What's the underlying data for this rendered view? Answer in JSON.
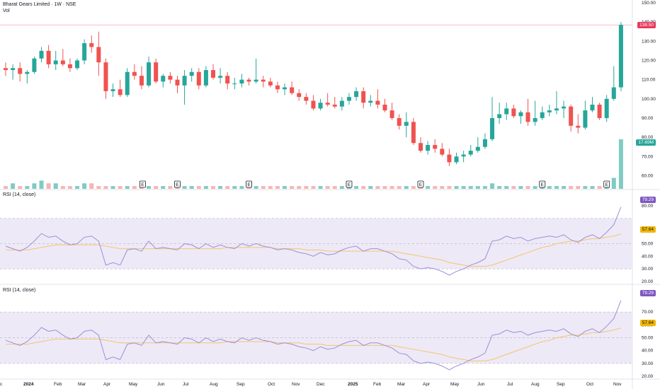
{
  "header": {
    "title": "Bharat Gears Limited · 1W · NSE",
    "vol_label": "Vol"
  },
  "colors": {
    "up": "#26a69a",
    "down": "#ef5350",
    "up_vol": "#80cbc4",
    "down_vol": "#f7b4b3",
    "rsi_line": "#9c8fd6",
    "rsi_ma": "#f5c56b",
    "rsi_band": "#ede9f7",
    "last_price_tag": "#e8395b",
    "vol_tag": "#26a69a",
    "rsi_tag": "#7e57c2",
    "ma_tag": "#f2b705"
  },
  "chart_data": [
    {
      "type": "candlestick",
      "title": "Bharat Gears Limited · 1W · NSE",
      "ylim": [
        55,
        150
      ],
      "y_ticks": [
        "150.00",
        "140.00",
        "130.00",
        "120.00",
        "110.00",
        "100.00",
        "90.00",
        "80.00",
        "70.00",
        "60.00"
      ],
      "last_price_label": "138.50",
      "last_volume_label": "17.69M",
      "earnings_markers": [
        "E",
        "E",
        "E",
        "E",
        "E",
        "E",
        "E",
        "E"
      ],
      "x_labels": [
        "c",
        "2024",
        "Feb",
        "Mar",
        "Apr",
        "May",
        "Jun",
        "Jul",
        "Aug",
        "Sep",
        "Oct",
        "Nov",
        "Dec",
        "2025",
        "Feb",
        "Mar",
        "Apr",
        "May",
        "Jun",
        "Jul",
        "Aug",
        "Sep",
        "Oct",
        "Nov"
      ],
      "ohlc": [
        [
          116,
          119,
          112,
          115
        ],
        [
          115,
          118,
          110,
          116
        ],
        [
          116,
          119,
          109,
          113
        ],
        [
          113,
          115,
          108,
          114
        ],
        [
          114,
          122,
          113,
          121
        ],
        [
          121,
          127,
          119,
          125
        ],
        [
          125,
          128,
          116,
          118
        ],
        [
          118,
          125,
          115,
          120
        ],
        [
          120,
          126,
          117,
          118
        ],
        [
          118,
          121,
          114,
          116
        ],
        [
          116,
          121,
          115,
          120
        ],
        [
          120,
          131,
          118,
          129
        ],
        [
          129,
          133,
          124,
          127
        ],
        [
          127,
          135,
          112,
          119
        ],
        [
          119,
          121,
          100,
          104
        ],
        [
          104,
          108,
          101,
          105
        ],
        [
          105,
          110,
          101,
          102
        ],
        [
          102,
          116,
          101,
          114
        ],
        [
          114,
          118,
          110,
          112
        ],
        [
          112,
          117,
          105,
          107
        ],
        [
          107,
          122,
          106,
          119
        ],
        [
          119,
          121,
          108,
          109
        ],
        [
          109,
          113,
          106,
          112
        ],
        [
          112,
          114,
          108,
          110
        ],
        [
          110,
          112,
          103,
          107
        ],
        [
          107,
          115,
          97,
          112
        ],
        [
          112,
          116,
          109,
          114
        ],
        [
          114,
          116,
          105,
          107
        ],
        [
          107,
          117,
          106,
          115
        ],
        [
          115,
          118,
          110,
          111
        ],
        [
          111,
          116,
          108,
          112
        ],
        [
          112,
          114,
          105,
          108
        ],
        [
          108,
          111,
          105,
          108
        ],
        [
          108,
          113,
          106,
          110
        ],
        [
          110,
          111,
          107,
          109
        ],
        [
          109,
          121,
          108,
          110
        ],
        [
          110,
          112,
          106,
          109
        ],
        [
          109,
          111,
          106,
          107
        ],
        [
          107,
          109,
          103,
          105
        ],
        [
          105,
          108,
          102,
          106
        ],
        [
          106,
          109,
          102,
          103
        ],
        [
          103,
          105,
          99,
          101
        ],
        [
          101,
          103,
          97,
          99
        ],
        [
          99,
          102,
          94,
          95
        ],
        [
          95,
          100,
          94,
          98
        ],
        [
          98,
          103,
          96,
          97
        ],
        [
          97,
          101,
          95,
          96
        ],
        [
          96,
          101,
          94,
          99
        ],
        [
          99,
          103,
          97,
          101
        ],
        [
          101,
          106,
          99,
          104
        ],
        [
          104,
          106,
          95,
          98
        ],
        [
          98,
          102,
          96,
          99
        ],
        [
          99,
          105,
          95,
          97
        ],
        [
          97,
          100,
          93,
          94
        ],
        [
          94,
          98,
          89,
          90
        ],
        [
          90,
          92,
          84,
          86
        ],
        [
          86,
          93,
          80,
          88
        ],
        [
          88,
          90,
          76,
          77
        ],
        [
          77,
          80,
          72,
          73
        ],
        [
          73,
          78,
          71,
          76
        ],
        [
          76,
          79,
          72,
          74
        ],
        [
          74,
          77,
          70,
          71
        ],
        [
          71,
          74,
          65,
          67
        ],
        [
          67,
          72,
          66,
          70
        ],
        [
          70,
          73,
          67,
          71
        ],
        [
          71,
          76,
          70,
          73
        ],
        [
          73,
          80,
          72,
          75
        ],
        [
          75,
          82,
          74,
          79
        ],
        [
          79,
          101,
          78,
          90
        ],
        [
          90,
          98,
          87,
          92
        ],
        [
          92,
          98,
          89,
          95
        ],
        [
          95,
          97,
          90,
          91
        ],
        [
          91,
          94,
          87,
          93
        ],
        [
          93,
          100,
          86,
          88
        ],
        [
          88,
          99,
          86,
          90
        ],
        [
          90,
          96,
          89,
          93
        ],
        [
          93,
          97,
          91,
          94
        ],
        [
          94,
          104,
          92,
          95
        ],
        [
          95,
          99,
          90,
          96
        ],
        [
          96,
          97,
          83,
          86
        ],
        [
          86,
          92,
          82,
          85
        ],
        [
          85,
          99,
          84,
          94
        ],
        [
          94,
          101,
          93,
          97
        ],
        [
          97,
          98,
          89,
          90
        ],
        [
          90,
          102,
          88,
          100
        ],
        [
          100,
          117,
          99,
          106
        ],
        [
          106,
          140,
          104,
          138.5
        ]
      ],
      "volume": [
        1,
        2,
        1,
        1,
        2,
        3,
        2,
        2,
        1,
        1,
        1,
        2,
        2,
        1,
        1,
        1,
        1,
        1,
        1,
        1,
        1,
        1,
        1,
        1,
        1,
        1,
        1,
        1,
        1,
        1,
        1,
        1,
        1,
        1,
        1,
        1,
        1,
        1,
        1,
        1,
        1,
        1,
        1,
        1,
        1,
        1,
        1,
        1,
        1,
        1,
        1,
        1,
        1,
        1,
        1,
        1,
        1,
        1,
        1,
        1,
        1,
        1,
        1,
        1,
        1,
        1,
        1,
        1,
        2,
        1,
        1,
        1,
        1,
        1,
        1,
        1,
        1,
        1,
        1,
        1,
        1,
        1,
        1,
        1,
        2,
        4,
        18
      ]
    },
    {
      "type": "line",
      "label": "RSI (14, close)",
      "ylim": [
        20,
        85
      ],
      "y_ticks": [
        "80.00",
        "60.00",
        "50.00",
        "40.00",
        "30.00",
        "20.00"
      ],
      "rsi_last_label": "79.29",
      "ma_last_label": "57.64",
      "series": [
        {
          "name": "RSI",
          "values": [
            48,
            46,
            44,
            47,
            52,
            58,
            55,
            56,
            52,
            49,
            50,
            55,
            56,
            52,
            33,
            35,
            33,
            45,
            46,
            44,
            52,
            46,
            47,
            46,
            45,
            50,
            49,
            46,
            50,
            47,
            49,
            47,
            46,
            50,
            48,
            50,
            48,
            47,
            45,
            46,
            45,
            43,
            42,
            40,
            43,
            41,
            42,
            45,
            47,
            48,
            44,
            46,
            46,
            44,
            42,
            38,
            37,
            32,
            30,
            31,
            30,
            28,
            25,
            28,
            30,
            33,
            35,
            38,
            52,
            53,
            56,
            54,
            55,
            52,
            54,
            55,
            56,
            55,
            57,
            53,
            51,
            55,
            57,
            54,
            59,
            65,
            79
          ]
        },
        {
          "name": "RSI MA",
          "values": [
            45,
            45,
            45,
            45,
            46,
            47,
            48,
            49,
            49,
            49,
            49,
            49,
            49,
            49,
            48,
            47,
            46,
            46,
            46,
            46,
            46,
            46,
            46,
            46,
            46,
            46,
            46,
            46,
            46,
            46,
            46,
            47,
            47,
            47,
            47,
            47,
            47,
            47,
            46,
            46,
            46,
            46,
            45,
            45,
            45,
            44,
            44,
            44,
            44,
            44,
            44,
            44,
            44,
            44,
            44,
            43,
            42,
            41,
            40,
            39,
            38,
            37,
            35,
            34,
            33,
            32,
            32,
            32,
            33,
            35,
            37,
            39,
            41,
            43,
            45,
            47,
            48,
            50,
            51,
            52,
            52,
            53,
            54,
            54,
            55,
            56,
            57.64
          ]
        }
      ]
    },
    {
      "type": "line",
      "label": "RSI (14, close)",
      "ylim": [
        20,
        85
      ],
      "y_ticks": [
        "70.00",
        "60.00",
        "50.00",
        "40.00",
        "30.00",
        "20.00"
      ],
      "rsi_last_label": "79.29",
      "ma_last_label": "57.64"
    }
  ]
}
